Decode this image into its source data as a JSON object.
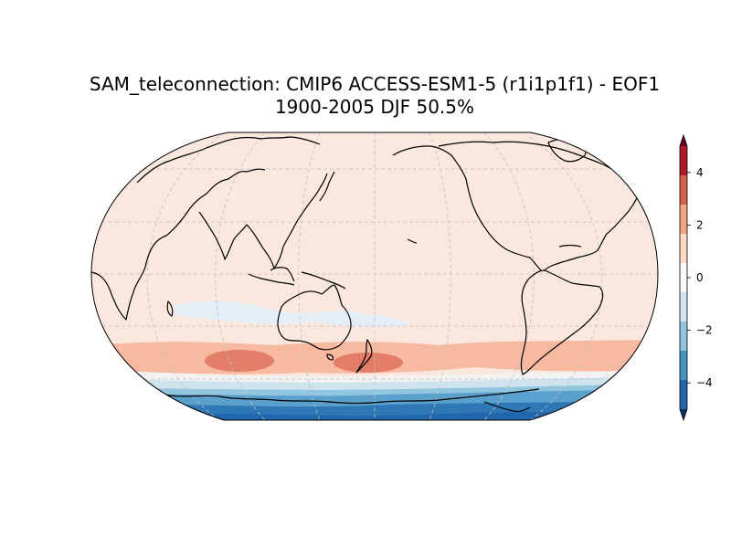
{
  "title_line1": "SAM_teleconnection: CMIP6 ACCESS-ESM1-5 (r1i1p1f1) - EOF1",
  "title_line2": "1900-2005 DJF 50.5%",
  "colorbar": {
    "ticks": [
      "4",
      "2",
      "0",
      "−2",
      "−4"
    ],
    "tick_values": [
      4,
      2,
      0,
      -2,
      -4
    ],
    "range": [
      -5,
      5
    ],
    "extend": "both",
    "colors": [
      "#053061",
      "#2166ac",
      "#4393c3",
      "#92c5de",
      "#d1e5f0",
      "#f7f7f7",
      "#fddbc7",
      "#f4a582",
      "#d6604d",
      "#b2182b",
      "#67001f"
    ]
  },
  "map": {
    "projection": "Robinson",
    "central_longitude": 180,
    "background_color": "#fae8df",
    "gridlines": true
  }
}
